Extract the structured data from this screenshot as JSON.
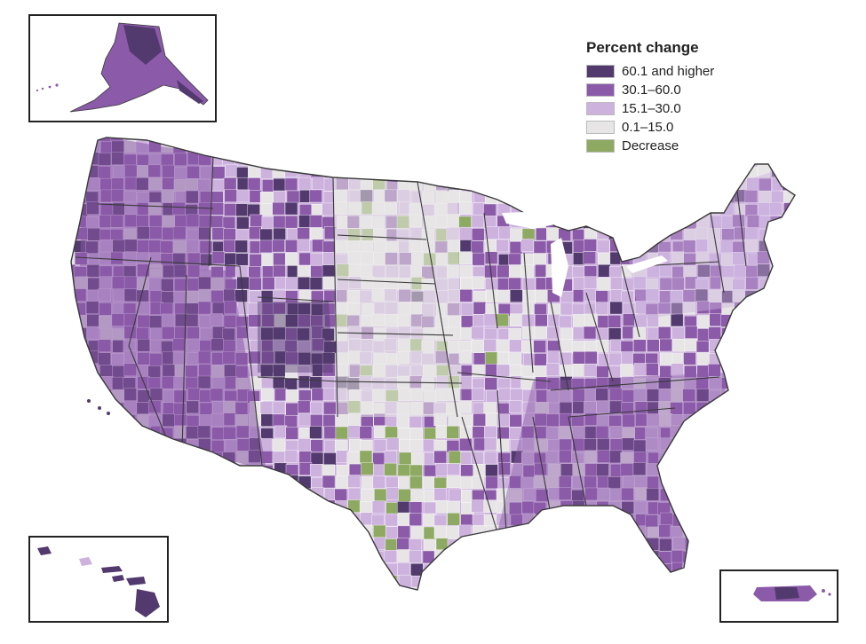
{
  "legend": {
    "title": "Percent change",
    "items": [
      {
        "key": "c5",
        "label": "60.1 and higher",
        "color": "#523a6e"
      },
      {
        "key": "c4",
        "label": "30.1–60.0",
        "color": "#8b5aa8"
      },
      {
        "key": "c3",
        "label": "15.1–30.0",
        "color": "#cdb2de"
      },
      {
        "key": "c2",
        "label": "0.1–15.0",
        "color": "#e7e5e6"
      },
      {
        "key": "c1",
        "label": "Decrease",
        "color": "#8eaa62"
      }
    ]
  },
  "regions": [
    {
      "name": "pacific-northwest",
      "class": "c4"
    },
    {
      "name": "california-nevada-southwest",
      "class": "c4"
    },
    {
      "name": "mountain-west",
      "class": "c4"
    },
    {
      "name": "colorado-front-range",
      "class": "c5"
    },
    {
      "name": "great-plains",
      "class": "c2"
    },
    {
      "name": "midwest",
      "class": "c3"
    },
    {
      "name": "southeast",
      "class": "c4"
    },
    {
      "name": "northeast",
      "class": "c3"
    },
    {
      "name": "alaska",
      "class": "c4"
    },
    {
      "name": "hawaii",
      "class": "c5"
    },
    {
      "name": "puerto-rico",
      "class": "c4"
    }
  ],
  "colors": {
    "outline": "#ffffff",
    "state_border": "#3a3a3a",
    "inset_border": "#222222"
  }
}
